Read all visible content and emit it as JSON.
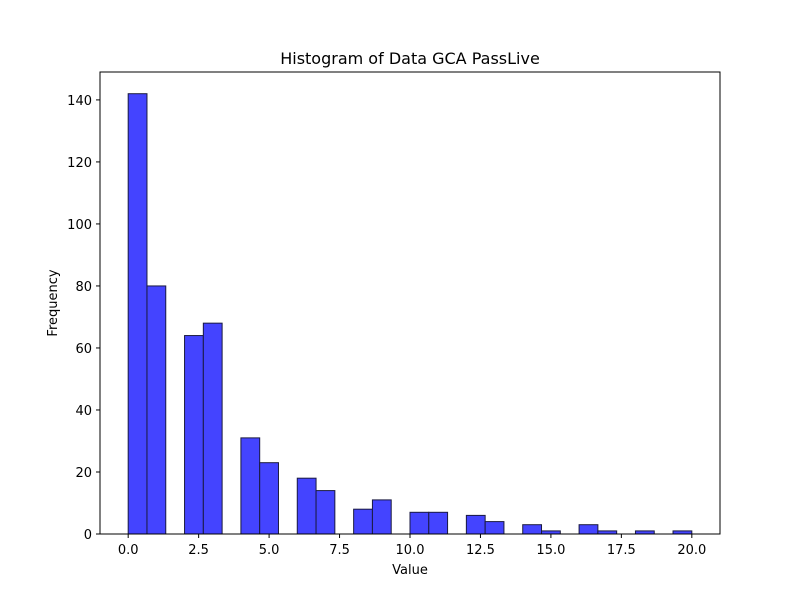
{
  "chart_data": {
    "type": "bar",
    "title": "Histogram of Data GCA PassLive",
    "xlabel": "Value",
    "ylabel": "Frequency",
    "xlim": [
      -1,
      21
    ],
    "ylim": [
      0,
      149
    ],
    "bin_edges": [
      0,
      0.6667,
      1.3333,
      2.0,
      2.6667,
      3.3333,
      4.0,
      4.6667,
      5.3333,
      6.0,
      6.6667,
      7.3333,
      8.0,
      8.6667,
      9.3333,
      10.0,
      10.6667,
      11.3333,
      12.0,
      12.6667,
      13.3333,
      14.0,
      14.6667,
      15.3333,
      16.0,
      16.6667,
      17.3333,
      18.0,
      18.6667,
      19.3333,
      20.0
    ],
    "values": [
      142,
      80,
      0,
      64,
      68,
      0,
      31,
      23,
      0,
      18,
      14,
      0,
      8,
      11,
      0,
      7,
      7,
      0,
      6,
      4,
      0,
      3,
      1,
      0,
      3,
      1,
      0,
      1,
      0,
      1
    ],
    "xticks": [
      "0.0",
      "2.5",
      "5.0",
      "7.5",
      "10.0",
      "12.5",
      "15.0",
      "17.5",
      "20.0"
    ],
    "xtick_values": [
      0,
      2.5,
      5,
      7.5,
      10,
      12.5,
      15,
      17.5,
      20
    ],
    "yticks": [
      "0",
      "20",
      "40",
      "60",
      "80",
      "100",
      "120",
      "140"
    ],
    "ytick_values": [
      0,
      20,
      40,
      60,
      80,
      100,
      120,
      140
    ],
    "bar_color": "#4444ff",
    "bar_edge_color": "#1a1a40",
    "grid": false,
    "legend": "none"
  }
}
